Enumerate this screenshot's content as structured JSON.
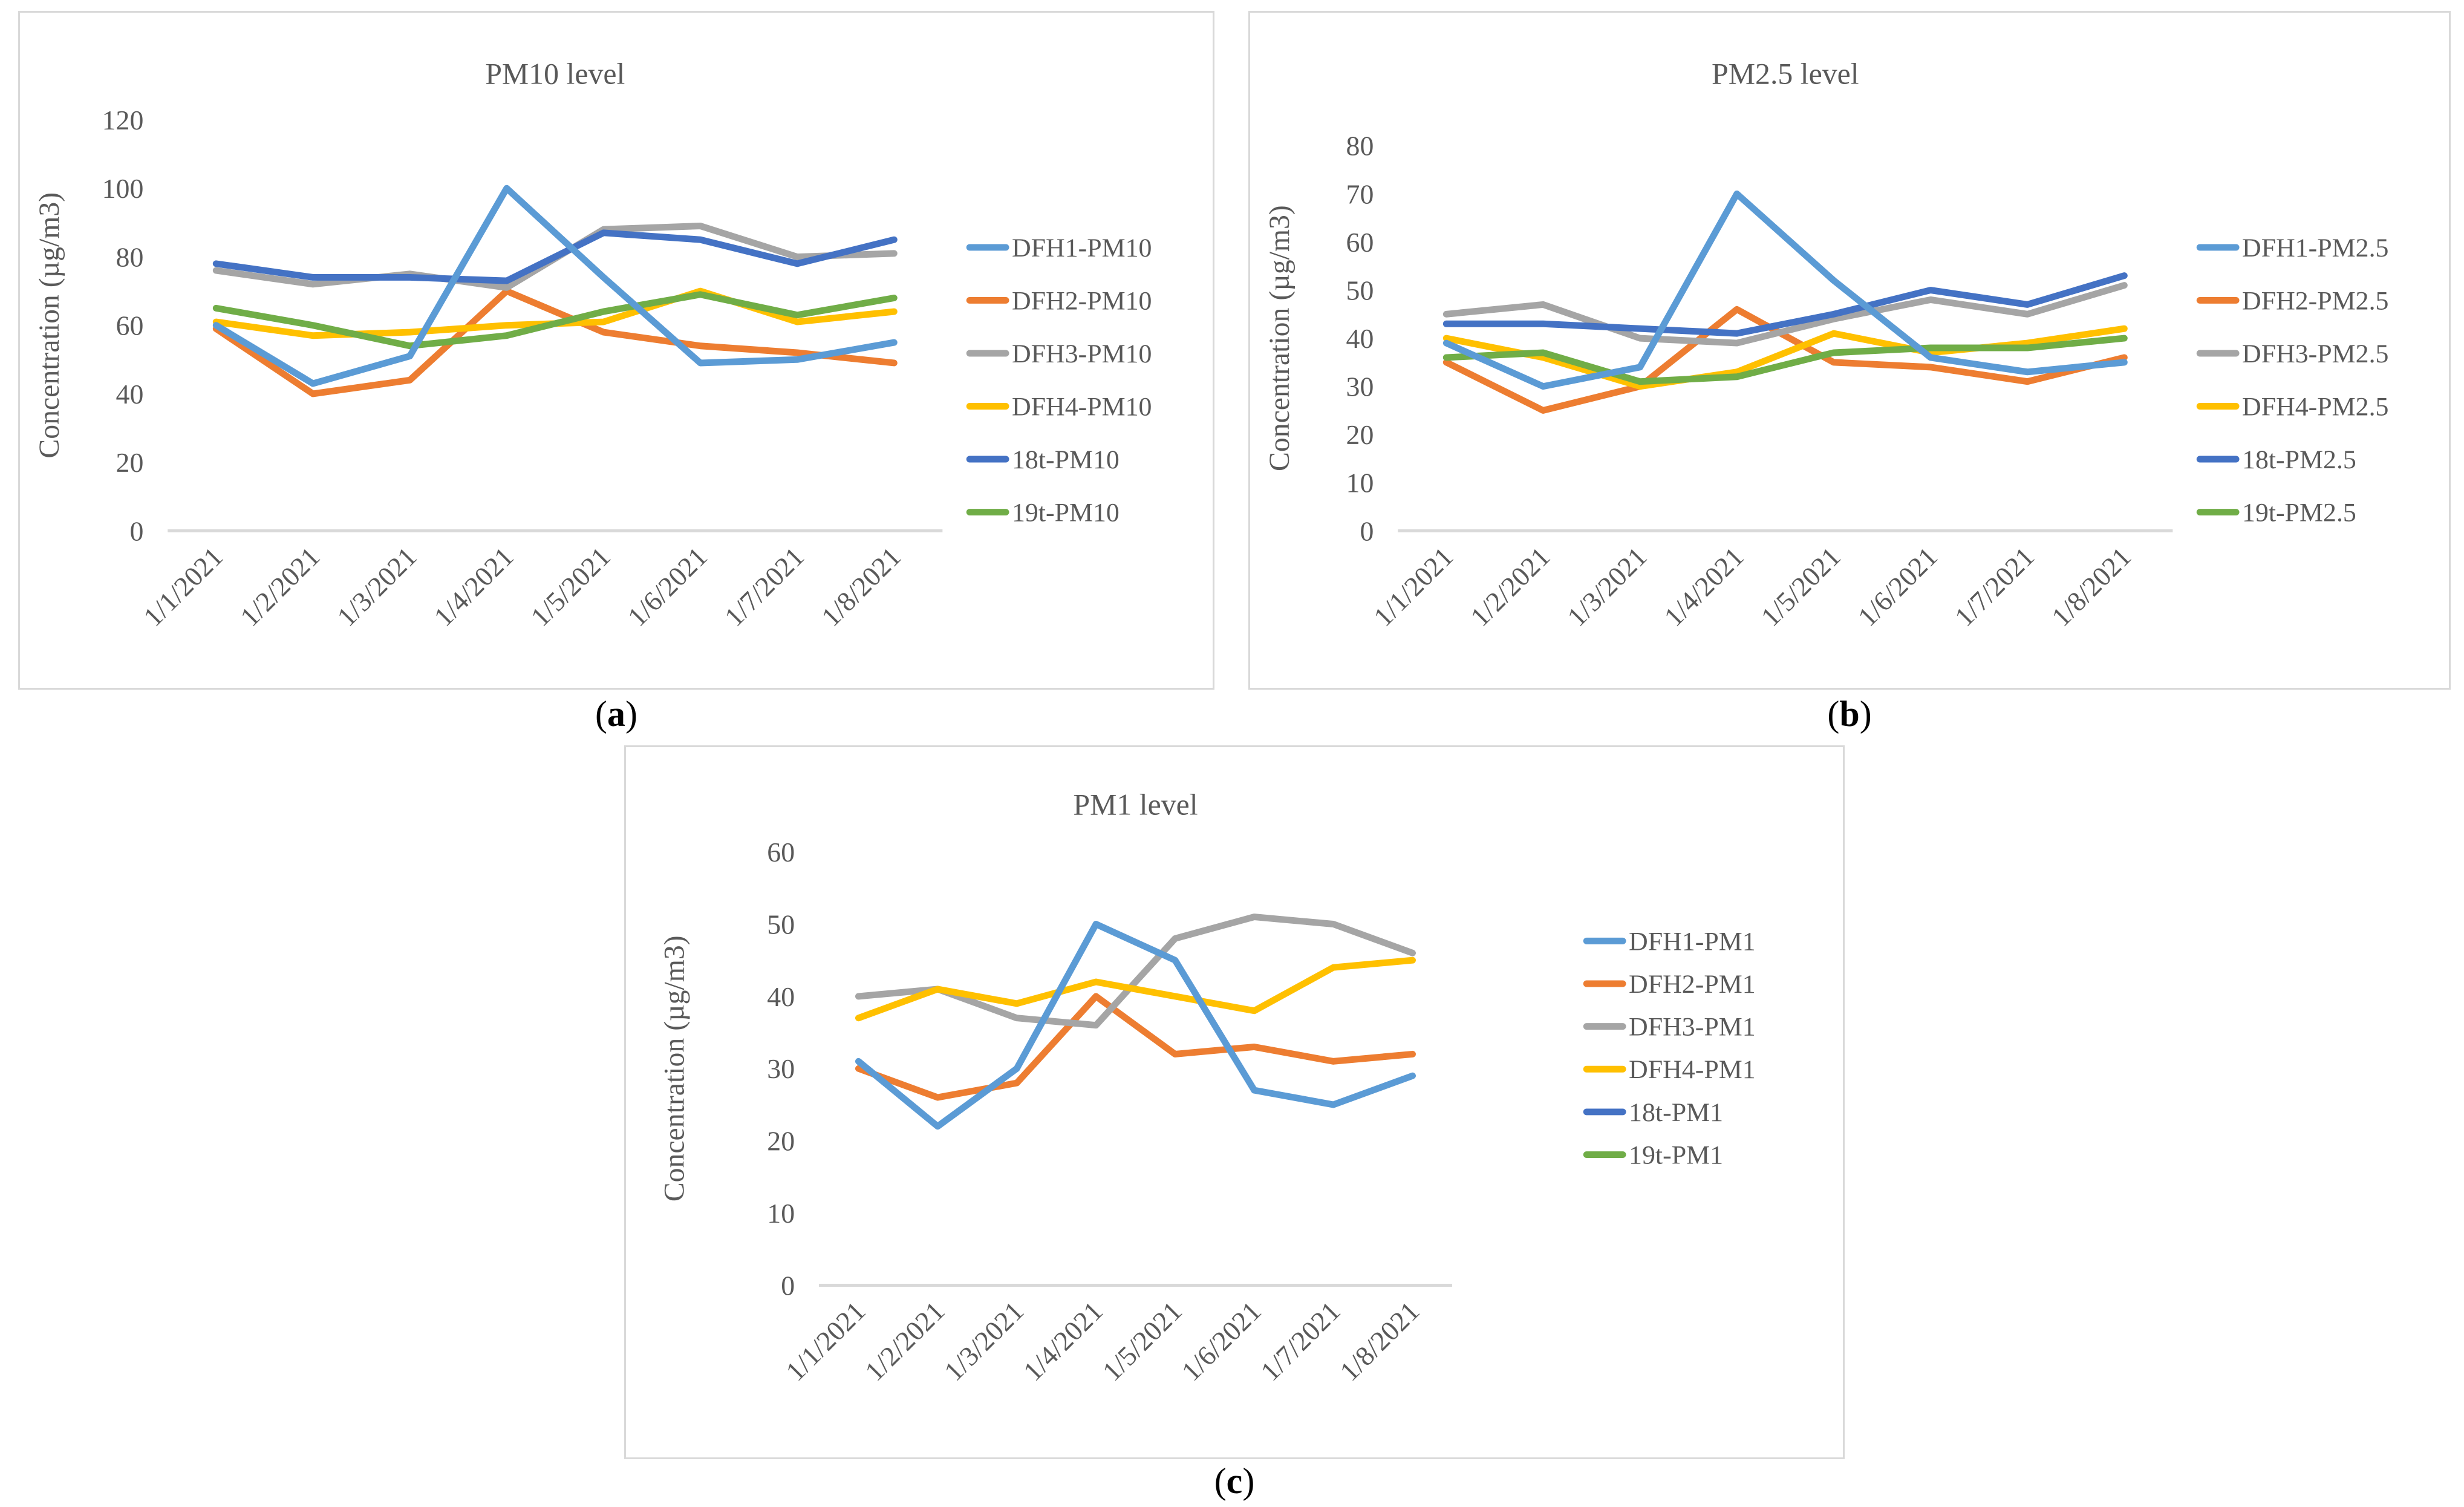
{
  "figure": {
    "background": "#ffffff",
    "text_color": "#595959",
    "axis_line_color": "#d9d9d9",
    "panel_border_color": "#d9d9d9"
  },
  "captions": {
    "a": {
      "prefix": "(",
      "label": "a",
      "suffix": ")"
    },
    "b": {
      "prefix": "(",
      "label": "b",
      "suffix": ")"
    },
    "c": {
      "prefix": "(",
      "label": "c",
      "suffix": ")"
    }
  },
  "chart_data": [
    {
      "panel": "a",
      "type": "line",
      "title": "PM10 level",
      "ylabel": "Concentration (µg/m3)",
      "ylim": [
        0,
        120
      ],
      "yticks": [
        0,
        20,
        40,
        60,
        80,
        100,
        120
      ],
      "grid": false,
      "legend_position": "right",
      "categories": [
        "1/1/2021",
        "1/2/2021",
        "1/3/2021",
        "1/4/2021",
        "1/5/2021",
        "1/6/2021",
        "1/7/2021",
        "1/8/2021"
      ],
      "series": [
        {
          "name": "DFH1-PM10",
          "color": "#5B9BD5",
          "values": [
            60,
            43,
            51,
            100,
            74,
            49,
            50,
            55
          ]
        },
        {
          "name": "DFH2-PM10",
          "color": "#ED7D31",
          "values": [
            59,
            40,
            44,
            70,
            58,
            54,
            52,
            49
          ]
        },
        {
          "name": "DFH3-PM10",
          "color": "#A5A5A5",
          "values": [
            76,
            72,
            75,
            71,
            88,
            89,
            80,
            81
          ]
        },
        {
          "name": "DFH4-PM10",
          "color": "#FFC000",
          "values": [
            61,
            57,
            58,
            60,
            61,
            70,
            61,
            64
          ]
        },
        {
          "name": "18t-PM10",
          "color": "#4472C4",
          "values": [
            78,
            74,
            74,
            73,
            87,
            85,
            78,
            85
          ]
        },
        {
          "name": "19t-PM10",
          "color": "#70AD47",
          "values": [
            65,
            60,
            54,
            57,
            64,
            69,
            63,
            68
          ]
        }
      ]
    },
    {
      "panel": "b",
      "type": "line",
      "title": "PM2.5 level",
      "ylabel": "Concentration (µg/m3)",
      "ylim": [
        0,
        80
      ],
      "yticks": [
        0,
        10,
        20,
        30,
        40,
        50,
        60,
        70,
        80
      ],
      "grid": false,
      "legend_position": "right",
      "categories": [
        "1/1/2021",
        "1/2/2021",
        "1/3/2021",
        "1/4/2021",
        "1/5/2021",
        "1/6/2021",
        "1/7/2021",
        "1/8/2021"
      ],
      "series": [
        {
          "name": "DFH1-PM2.5",
          "color": "#5B9BD5",
          "values": [
            39,
            30,
            34,
            70,
            52,
            36,
            33,
            35
          ]
        },
        {
          "name": "DFH2-PM2.5",
          "color": "#ED7D31",
          "values": [
            35,
            25,
            30,
            46,
            35,
            34,
            31,
            36
          ]
        },
        {
          "name": "DFH3-PM2.5",
          "color": "#A5A5A5",
          "values": [
            45,
            47,
            40,
            39,
            44,
            48,
            45,
            51
          ]
        },
        {
          "name": "DFH4-PM2.5",
          "color": "#FFC000",
          "values": [
            40,
            36,
            30,
            33,
            41,
            37,
            39,
            42
          ]
        },
        {
          "name": "18t-PM2.5",
          "color": "#4472C4",
          "values": [
            43,
            43,
            42,
            41,
            45,
            50,
            47,
            53
          ]
        },
        {
          "name": "19t-PM2.5",
          "color": "#70AD47",
          "values": [
            36,
            37,
            31,
            32,
            37,
            38,
            38,
            40
          ]
        }
      ]
    },
    {
      "panel": "c",
      "type": "line",
      "title": "PM1 level",
      "ylabel": "Concentration (µg/m3)",
      "ylim": [
        0,
        60
      ],
      "yticks": [
        0,
        10,
        20,
        30,
        40,
        50,
        60
      ],
      "grid": false,
      "legend_position": "right",
      "categories": [
        "1/1/2021",
        "1/2/2021",
        "1/3/2021",
        "1/4/2021",
        "1/5/2021",
        "1/6/2021",
        "1/7/2021",
        "1/8/2021"
      ],
      "series": [
        {
          "name": "DFH1-PM1",
          "color": "#5B9BD5",
          "values": [
            31,
            22,
            30,
            50,
            45,
            27,
            25,
            29
          ]
        },
        {
          "name": "DFH2-PM1",
          "color": "#ED7D31",
          "values": [
            30,
            26,
            28,
            40,
            32,
            33,
            31,
            32
          ]
        },
        {
          "name": "DFH3-PM1",
          "color": "#A5A5A5",
          "values": [
            40,
            41,
            37,
            36,
            48,
            51,
            50,
            46
          ]
        },
        {
          "name": "DFH4-PM1",
          "color": "#FFC000",
          "values": [
            37,
            41,
            39,
            42,
            40,
            38,
            44,
            45
          ]
        },
        {
          "name": "18t-PM1",
          "color": "#4472C4",
          "values": []
        },
        {
          "name": "19t-PM1",
          "color": "#70AD47",
          "values": []
        }
      ]
    }
  ]
}
